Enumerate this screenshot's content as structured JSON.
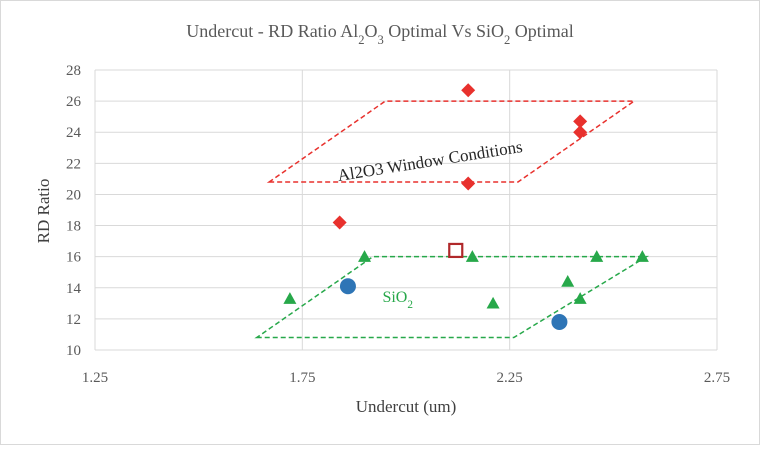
{
  "chart_data": {
    "type": "scatter",
    "title_parts": [
      {
        "t": "Undercut - RD Ratio Al",
        "sub": false
      },
      {
        "t": "2",
        "sub": true
      },
      {
        "t": "O",
        "sub": false
      },
      {
        "t": "3",
        "sub": true
      },
      {
        "t": " Optimal Vs SiO",
        "sub": false
      },
      {
        "t": "2",
        "sub": true
      },
      {
        "t": " Optimal",
        "sub": false
      }
    ],
    "xlabel": "Undercut (um)",
    "ylabel": "RD Ratio",
    "xlim": [
      1.25,
      2.75
    ],
    "ylim": [
      10,
      28
    ],
    "xticks": [
      "1.25",
      "1.75",
      "2.25",
      "2.75"
    ],
    "xtick_values": [
      1.25,
      1.75,
      2.25,
      2.75
    ],
    "yticks": [
      "10",
      "12",
      "14",
      "16",
      "18",
      "20",
      "22",
      "24",
      "26",
      "28"
    ],
    "ytick_values": [
      10,
      12,
      14,
      16,
      18,
      20,
      22,
      24,
      26,
      28
    ],
    "grid": {
      "vertical": true,
      "horizontal": true
    },
    "series": [
      {
        "marker": "diamond",
        "color": "#e8312d",
        "points": [
          [
            2.15,
            26.7
          ],
          [
            2.42,
            24.7
          ],
          [
            2.42,
            24.0
          ],
          [
            2.15,
            20.7
          ],
          [
            1.84,
            18.2
          ]
        ]
      },
      {
        "marker": "square-open",
        "color": "#b0282a",
        "points": [
          [
            2.12,
            16.4
          ]
        ]
      },
      {
        "marker": "triangle",
        "color": "#27a84a",
        "points": [
          [
            1.72,
            13.3
          ],
          [
            1.9,
            16.0
          ],
          [
            2.16,
            16.0
          ],
          [
            2.21,
            13.0
          ],
          [
            2.39,
            14.4
          ],
          [
            2.42,
            13.3
          ],
          [
            2.46,
            16.0
          ],
          [
            2.57,
            16.0
          ]
        ]
      },
      {
        "marker": "circle",
        "color": "#2e75b6",
        "points": [
          [
            1.86,
            14.1
          ],
          [
            2.37,
            11.8
          ]
        ]
      }
    ],
    "windows": [
      {
        "name": "al2o3-window",
        "color": "#e8312d",
        "polygon": [
          [
            1.67,
            20.8
          ],
          [
            2.27,
            20.8
          ],
          [
            2.55,
            26.0
          ],
          [
            1.95,
            26.0
          ]
        ]
      },
      {
        "name": "sio2-window",
        "color": "#27a84a",
        "polygon": [
          [
            1.64,
            10.8
          ],
          [
            2.26,
            10.8
          ],
          [
            2.58,
            16.0
          ],
          [
            1.92,
            16.0
          ]
        ]
      }
    ],
    "annotations": [
      {
        "name": "al2o3-annotation",
        "parts": [
          {
            "t": "Al2O3 Window Conditions",
            "sub": false
          }
        ],
        "x": 2.06,
        "y": 21.8,
        "rotate": -9,
        "class": "annot-red"
      },
      {
        "name": "sio2-annotation",
        "parts": [
          {
            "t": "SiO",
            "sub": false
          },
          {
            "t": "2",
            "sub": true
          }
        ],
        "x": 1.98,
        "y": 13.1,
        "rotate": 0,
        "class": "annot-green"
      }
    ]
  }
}
